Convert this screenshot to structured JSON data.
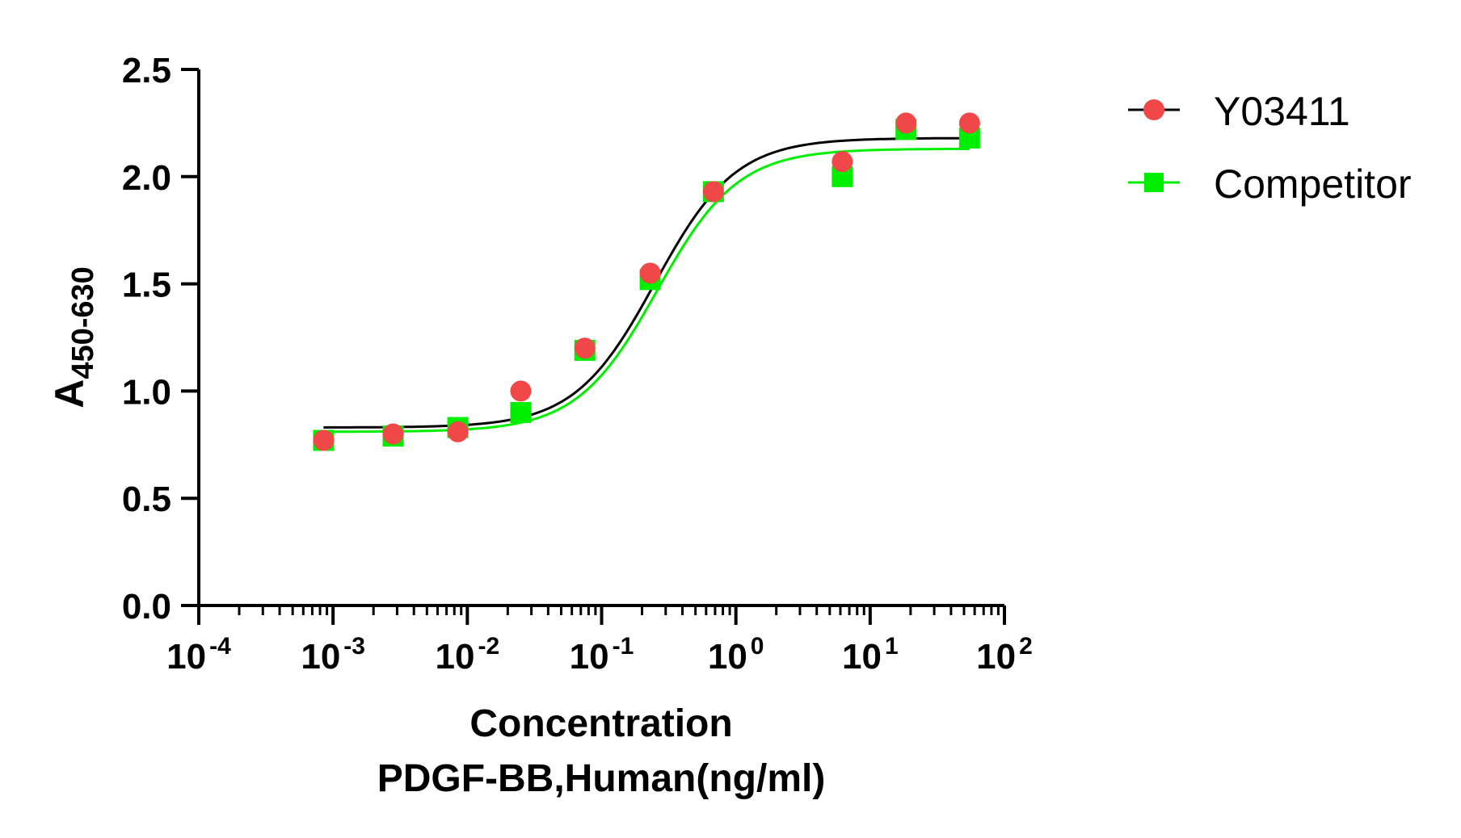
{
  "chart_data": {
    "type": "scatter",
    "x_scale": "log",
    "xlim": [
      0.0001,
      100
    ],
    "ylim": [
      0,
      2.5
    ],
    "y_ticks": [
      "0.0",
      "0.5",
      "1.0",
      "1.5",
      "2.0",
      "2.5"
    ],
    "x_ticks": [
      {
        "base": "10",
        "exp": "-4"
      },
      {
        "base": "10",
        "exp": "-3"
      },
      {
        "base": "10",
        "exp": "-2"
      },
      {
        "base": "10",
        "exp": "-1"
      },
      {
        "base": "10",
        "exp": "0"
      },
      {
        "base": "10",
        "exp": "1"
      },
      {
        "base": "10",
        "exp": "2"
      }
    ],
    "ylabel": {
      "main": "A",
      "sub": "450-630"
    },
    "xlabel": [
      "Concentration",
      "PDGF-BB,Human(ng/ml)"
    ],
    "x": [
      0.00085,
      0.0028,
      0.0085,
      0.025,
      0.075,
      0.23,
      0.68,
      6.2,
      18.5,
      55
    ],
    "series": [
      {
        "name": "Y03411",
        "marker": "circle",
        "color": "#f04848",
        "line_color": "#000000",
        "values": [
          0.77,
          0.8,
          0.81,
          1.0,
          1.2,
          1.55,
          1.93,
          2.07,
          2.25,
          2.25
        ],
        "fit": {
          "bottom": 0.83,
          "top": 2.18,
          "ec50": 0.25,
          "hill": 1.45
        }
      },
      {
        "name": "Competitor",
        "marker": "square",
        "color": "#00ee00",
        "line_color": "#00ee00",
        "values": [
          0.77,
          0.79,
          0.83,
          0.9,
          1.19,
          1.52,
          1.93,
          2.0,
          2.22,
          2.18
        ],
        "fit": {
          "bottom": 0.81,
          "top": 2.13,
          "ec50": 0.26,
          "hill": 1.45
        }
      }
    ]
  }
}
